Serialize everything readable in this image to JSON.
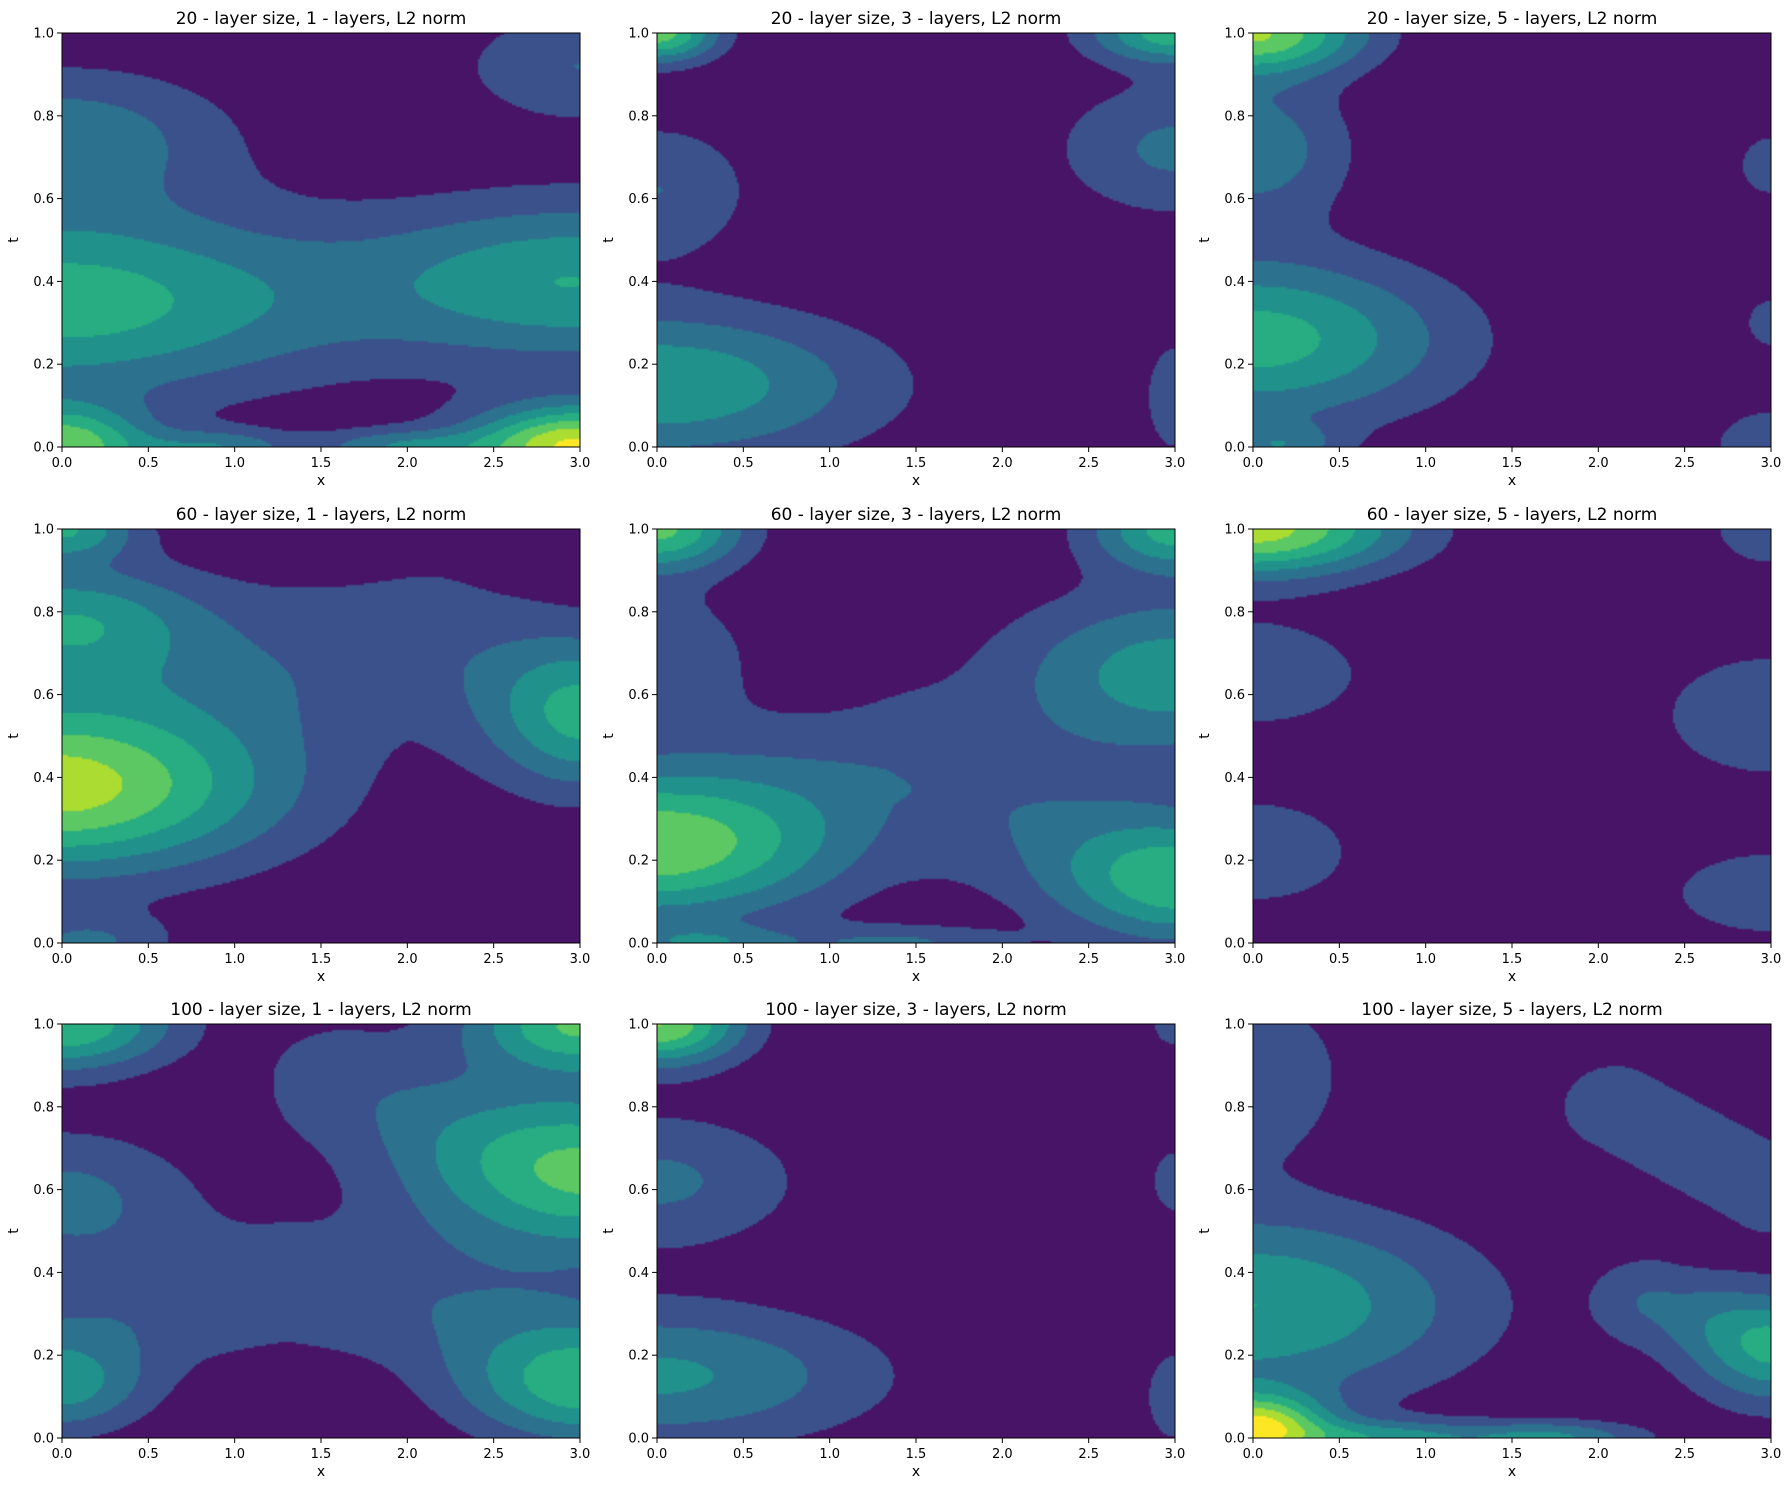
{
  "colors": {
    "levels": [
      "#481467",
      "#3b518b",
      "#2c718e",
      "#21918c",
      "#27ad81",
      "#5cc863",
      "#aadc32",
      "#fde725"
    ]
  },
  "chart_data": [
    {
      "type": "heatmap",
      "title": "20 - layer size, 1 - layers, L2 norm",
      "xlabel": "x",
      "ylabel": "t",
      "xlim": [
        0,
        3
      ],
      "ylim": [
        0,
        1
      ],
      "xticks": [
        "0.0",
        "0.5",
        "1.0",
        "1.5",
        "2.0",
        "2.5",
        "3.0"
      ],
      "yticks": [
        "0.0",
        "0.2",
        "0.4",
        "0.6",
        "0.8",
        "1.0"
      ],
      "blobs": [
        {
          "x": 0,
          "t": 0.35,
          "sx": 1.1,
          "st": 0.16,
          "a": 4.6
        },
        {
          "x": 3,
          "t": 0.4,
          "sx": 0.9,
          "st": 0.14,
          "a": 3.9
        },
        {
          "x": 0,
          "t": 0.75,
          "sx": 0.7,
          "st": 0.12,
          "a": 2.6
        },
        {
          "x": 3,
          "t": 0.92,
          "sx": 0.5,
          "st": 0.1,
          "a": 2.0
        },
        {
          "x": 0,
          "t": 0.0,
          "sx": 0.35,
          "st": 0.07,
          "a": 5.5
        },
        {
          "x": 3,
          "t": 0.0,
          "sx": 0.45,
          "st": 0.07,
          "a": 7.2
        },
        {
          "x": 0.9,
          "t": 0.0,
          "sx": 0.3,
          "st": 0.03,
          "a": 2.5
        },
        {
          "x": 1.95,
          "t": 0.0,
          "sx": 0.35,
          "st": 0.03,
          "a": 2.6
        }
      ]
    },
    {
      "type": "heatmap",
      "title": "20 - layer size, 3 - layers, L2 norm",
      "xlabel": "x",
      "ylabel": "t",
      "xlim": [
        0,
        3
      ],
      "ylim": [
        0,
        1
      ],
      "xticks": [
        "0.0",
        "0.5",
        "1.0",
        "1.5",
        "2.0",
        "2.5",
        "3.0"
      ],
      "yticks": [
        "0.0",
        "0.2",
        "0.4",
        "0.6",
        "0.8",
        "1.0"
      ],
      "blobs": [
        {
          "x": 0,
          "t": 0.15,
          "sx": 0.9,
          "st": 0.13,
          "a": 3.9
        },
        {
          "x": 0,
          "t": 0.62,
          "sx": 0.4,
          "st": 0.12,
          "a": 2.0
        },
        {
          "x": 3,
          "t": 0.72,
          "sx": 0.5,
          "st": 0.12,
          "a": 2.2
        },
        {
          "x": 3,
          "t": 0.12,
          "sx": 0.15,
          "st": 0.12,
          "a": 1.6
        },
        {
          "x": 0,
          "t": 1.0,
          "sx": 0.25,
          "st": 0.05,
          "a": 5.5
        },
        {
          "x": 3,
          "t": 1.0,
          "sx": 0.35,
          "st": 0.05,
          "a": 4.5
        }
      ]
    },
    {
      "type": "heatmap",
      "title": "20 - layer size, 5 - layers, L2 norm",
      "xlabel": "x",
      "ylabel": "t",
      "xlim": [
        0,
        3
      ],
      "ylim": [
        0,
        1
      ],
      "xticks": [
        "0.0",
        "0.5",
        "1.0",
        "1.5",
        "2.0",
        "2.5",
        "3.0"
      ],
      "yticks": [
        "0.0",
        "0.2",
        "0.4",
        "0.6",
        "0.8",
        "1.0"
      ],
      "blobs": [
        {
          "x": 0,
          "t": 0.26,
          "sx": 0.8,
          "st": 0.14,
          "a": 4.5
        },
        {
          "x": 0,
          "t": 0.72,
          "sx": 0.4,
          "st": 0.12,
          "a": 2.7
        },
        {
          "x": 0,
          "t": 1.0,
          "sx": 0.45,
          "st": 0.07,
          "a": 6.0
        },
        {
          "x": 3,
          "t": 0.68,
          "sx": 0.15,
          "st": 0.06,
          "a": 1.8
        },
        {
          "x": 3,
          "t": 0.3,
          "sx": 0.12,
          "st": 0.05,
          "a": 1.7
        },
        {
          "x": 3,
          "t": 0.0,
          "sx": 0.25,
          "st": 0.07,
          "a": 2.0
        },
        {
          "x": 0.15,
          "t": 0.0,
          "sx": 0.25,
          "st": 0.04,
          "a": 2.2
        }
      ]
    },
    {
      "type": "heatmap",
      "title": "60 - layer size, 1 - layers, L2 norm",
      "xlabel": "x",
      "ylabel": "t",
      "xlim": [
        0,
        3
      ],
      "ylim": [
        0,
        1
      ],
      "xticks": [
        "0.0",
        "0.5",
        "1.0",
        "1.5",
        "2.0",
        "2.5",
        "3.0"
      ],
      "yticks": [
        "0.0",
        "0.2",
        "0.4",
        "0.6",
        "0.8",
        "1.0"
      ],
      "blobs": [
        {
          "x": 0,
          "t": 0.36,
          "sx": 0.9,
          "st": 0.14,
          "a": 5.5
        },
        {
          "x": 0,
          "t": 0.78,
          "sx": 0.55,
          "st": 0.1,
          "a": 3.5
        },
        {
          "x": 0,
          "t": 1.0,
          "sx": 0.3,
          "st": 0.05,
          "a": 3.8
        },
        {
          "x": 3,
          "t": 0.55,
          "sx": 0.35,
          "st": 0.12,
          "a": 2.8
        },
        {
          "x": 0.15,
          "t": 0.0,
          "sx": 0.35,
          "st": 0.05,
          "a": 2.0
        }
      ],
      "ridges": [
        {
          "pts": [
            [
              0.0,
              0.52
            ],
            [
              0.8,
              0.62
            ],
            [
              1.5,
              0.68
            ],
            [
              2.1,
              0.72
            ],
            [
              2.6,
              0.64
            ],
            [
              3.0,
              0.58
            ]
          ],
          "w": 0.16,
          "a": 1.7
        }
      ]
    },
    {
      "type": "heatmap",
      "title": "60 - layer size, 3 - layers, L2 norm",
      "xlabel": "x",
      "ylabel": "t",
      "xlim": [
        0,
        3
      ],
      "ylim": [
        0,
        1
      ],
      "xticks": [
        "0.0",
        "0.5",
        "1.0",
        "1.5",
        "2.0",
        "2.5",
        "3.0"
      ],
      "yticks": [
        "0.0",
        "0.2",
        "0.4",
        "0.6",
        "0.8",
        "1.0"
      ],
      "blobs": [
        {
          "x": 0,
          "t": 0.22,
          "sx": 0.75,
          "st": 0.12,
          "a": 4.6
        },
        {
          "x": 3,
          "t": 0.65,
          "sx": 0.7,
          "st": 0.14,
          "a": 3.6
        },
        {
          "x": 3,
          "t": 0.15,
          "sx": 0.5,
          "st": 0.1,
          "a": 3.3
        },
        {
          "x": 0,
          "t": 0.7,
          "sx": 0.4,
          "st": 0.12,
          "a": 1.8
        },
        {
          "x": 0,
          "t": 1.0,
          "sx": 0.35,
          "st": 0.07,
          "a": 5.2
        },
        {
          "x": 3,
          "t": 1.0,
          "sx": 0.35,
          "st": 0.07,
          "a": 4.3
        },
        {
          "x": 0.25,
          "t": 0.0,
          "sx": 0.35,
          "st": 0.03,
          "a": 2.2
        },
        {
          "x": 1.4,
          "t": 0.0,
          "sx": 0.45,
          "st": 0.03,
          "a": 2.0
        }
      ],
      "ridges": [
        {
          "pts": [
            [
              0.0,
              0.32
            ],
            [
              0.8,
              0.38
            ],
            [
              1.4,
              0.42
            ],
            [
              2.2,
              0.3
            ],
            [
              3.0,
              0.18
            ]
          ],
          "w": 0.14,
          "a": 1.7
        }
      ]
    },
    {
      "type": "heatmap",
      "title": "60 - layer size, 5 - layers, L2 norm",
      "xlabel": "x",
      "ylabel": "t",
      "xlim": [
        0,
        3
      ],
      "ylim": [
        0,
        1
      ],
      "xticks": [
        "0.0",
        "0.5",
        "1.0",
        "1.5",
        "2.0",
        "2.5",
        "3.0"
      ],
      "yticks": [
        "0.0",
        "0.2",
        "0.4",
        "0.6",
        "0.8",
        "1.0"
      ],
      "blobs": [
        {
          "x": 0,
          "t": 1.0,
          "sx": 0.6,
          "st": 0.08,
          "a": 6.5
        },
        {
          "x": 0,
          "t": 0.65,
          "sx": 0.5,
          "st": 0.1,
          "a": 1.9
        },
        {
          "x": 0,
          "t": 0.22,
          "sx": 0.45,
          "st": 0.1,
          "a": 1.9
        },
        {
          "x": 3,
          "t": 0.55,
          "sx": 0.5,
          "st": 0.12,
          "a": 1.9
        },
        {
          "x": 3,
          "t": 0.12,
          "sx": 0.45,
          "st": 0.08,
          "a": 1.9
        },
        {
          "x": 3,
          "t": 1.0,
          "sx": 0.3,
          "st": 0.08,
          "a": 1.6
        }
      ]
    },
    {
      "type": "heatmap",
      "title": "100 - layer size, 1 - layers, L2 norm",
      "xlabel": "x",
      "ylabel": "t",
      "xlim": [
        0,
        3
      ],
      "ylim": [
        0,
        1
      ],
      "xticks": [
        "0.0",
        "0.5",
        "1.0",
        "1.5",
        "2.0",
        "2.5",
        "3.0"
      ],
      "yticks": [
        "0.0",
        "0.2",
        "0.4",
        "0.6",
        "0.8",
        "1.0"
      ],
      "blobs": [
        {
          "x": 3,
          "t": 0.62,
          "sx": 0.7,
          "st": 0.14,
          "a": 4.0
        },
        {
          "x": 3,
          "t": 0.12,
          "sx": 0.5,
          "st": 0.1,
          "a": 3.6
        },
        {
          "x": 0,
          "t": 1.0,
          "sx": 0.45,
          "st": 0.08,
          "a": 5.0
        },
        {
          "x": 3,
          "t": 1.0,
          "sx": 0.45,
          "st": 0.08,
          "a": 5.0
        },
        {
          "x": 0,
          "t": 0.58,
          "sx": 0.55,
          "st": 0.12,
          "a": 2.3
        },
        {
          "x": 0,
          "t": 0.12,
          "sx": 0.35,
          "st": 0.08,
          "a": 2.6
        }
      ],
      "ridges": [
        {
          "pts": [
            [
              0.0,
              0.24
            ],
            [
              0.7,
              0.32
            ],
            [
              1.3,
              0.36
            ],
            [
              2.0,
              0.32
            ],
            [
              3.0,
              0.22
            ]
          ],
          "w": 0.12,
          "a": 1.7
        },
        {
          "pts": [
            [
              1.6,
              0.86
            ],
            [
              2.3,
              0.76
            ],
            [
              3.0,
              0.7
            ]
          ],
          "w": 0.12,
          "a": 1.6
        }
      ]
    },
    {
      "type": "heatmap",
      "title": "100 - layer size, 3 - layers, L2 norm",
      "xlabel": "x",
      "ylabel": "t",
      "xlim": [
        0,
        3
      ],
      "ylim": [
        0,
        1
      ],
      "xticks": [
        "0.0",
        "0.5",
        "1.0",
        "1.5",
        "2.0",
        "2.5",
        "3.0"
      ],
      "yticks": [
        "0.0",
        "0.2",
        "0.4",
        "0.6",
        "0.8",
        "1.0"
      ],
      "blobs": [
        {
          "x": 0,
          "t": 0.15,
          "sx": 0.9,
          "st": 0.12,
          "a": 3.2
        },
        {
          "x": 0,
          "t": 0.62,
          "sx": 0.6,
          "st": 0.12,
          "a": 2.2
        },
        {
          "x": 0,
          "t": 1.0,
          "sx": 0.35,
          "st": 0.07,
          "a": 6.0
        },
        {
          "x": 3,
          "t": 0.62,
          "sx": 0.12,
          "st": 0.07,
          "a": 1.6
        },
        {
          "x": 3,
          "t": 0.1,
          "sx": 0.15,
          "st": 0.1,
          "a": 1.6
        },
        {
          "x": 3,
          "t": 1.0,
          "sx": 0.12,
          "st": 0.05,
          "a": 1.6
        }
      ]
    },
    {
      "type": "heatmap",
      "title": "100 - layer size, 5 - layers, L2 norm",
      "xlabel": "x",
      "ylabel": "t",
      "xlim": [
        0,
        3
      ],
      "ylim": [
        0,
        1
      ],
      "xticks": [
        "0.0",
        "0.5",
        "1.0",
        "1.5",
        "2.0",
        "2.5",
        "3.0"
      ],
      "yticks": [
        "0.0",
        "0.2",
        "0.4",
        "0.6",
        "0.8",
        "1.0"
      ],
      "blobs": [
        {
          "x": 0,
          "t": 0.32,
          "sx": 0.9,
          "st": 0.16,
          "a": 4.0
        },
        {
          "x": 0,
          "t": 0.02,
          "sx": 0.3,
          "st": 0.06,
          "a": 7.0
        },
        {
          "x": 0,
          "t": 0.88,
          "sx": 0.4,
          "st": 0.15,
          "a": 1.9
        },
        {
          "x": 3,
          "t": 0.2,
          "sx": 0.35,
          "st": 0.1,
          "a": 2.8
        },
        {
          "x": 0.75,
          "t": 0.0,
          "sx": 0.35,
          "st": 0.03,
          "a": 3.0
        },
        {
          "x": 1.7,
          "t": 0.0,
          "sx": 0.4,
          "st": 0.03,
          "a": 3.2
        }
      ],
      "ridges": [
        {
          "pts": [
            [
              2.3,
              0.33
            ],
            [
              2.65,
              0.29
            ],
            [
              3.0,
              0.25
            ]
          ],
          "w": 0.08,
          "a": 1.8
        },
        {
          "pts": [
            [
              2.1,
              0.8
            ],
            [
              2.55,
              0.7
            ],
            [
              3.0,
              0.6
            ]
          ],
          "w": 0.09,
          "a": 1.8
        }
      ]
    }
  ]
}
